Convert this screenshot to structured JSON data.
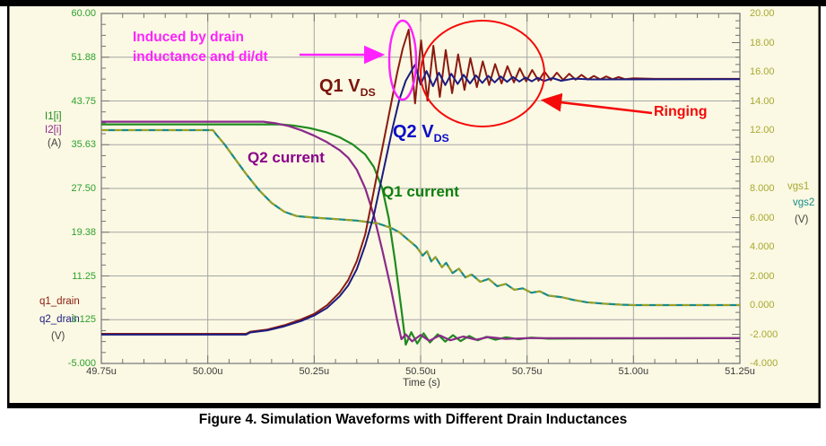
{
  "figure": {
    "caption": "Figure 4. Simulation Waveforms with Different Drain Inductances"
  },
  "colors": {
    "background": "#FBF9E3",
    "grid": "#A6A6A6",
    "frame": "#7F7F7F",
    "tick": "#737373",
    "left_axis_text": "#2EA02E",
    "right_axis_text": "#A8A832",
    "unit_text": "#3F3F3F",
    "i1_green": "#1F8A1F",
    "i2_purple": "#8B2A8B",
    "vgs1_olive": "#A0A020",
    "vgs2_teal": "#168A8A",
    "q1_dark_red": "#8B1A10",
    "q2_navy": "#1C1C80",
    "note_magenta": "#FF22FF",
    "ringing_red": "#F50A0A",
    "q1_vds_label": "#7A150C",
    "q2_vds_label": "#0A0AC8",
    "q1_current_label": "#0E7F0E",
    "q2_current_label": "#8B008B"
  },
  "axis_labels": {
    "i1": "I1[i]",
    "i2": "I2[i]",
    "amp_unit": "(A)",
    "q1_drain": "q1_drain",
    "q2_drain": "q2_drain",
    "volt_unit_left": "(V)",
    "vgs1": "vgs1",
    "vgs2": "vgs2",
    "volt_unit_right": "(V)"
  },
  "annotations": {
    "induced_note": "Induced by drain inductance and di/dt",
    "q1_vds": {
      "text": "Q1 V",
      "sub": "DS"
    },
    "q2_vds": {
      "text": "Q2 V",
      "sub": "DS"
    },
    "q2_current": "Q2 current",
    "q1_current": "Q1 current",
    "ringing": "Ringing"
  },
  "chart_data": {
    "type": "line",
    "title": "",
    "xlabel": "Time (s)",
    "x_range": [
      49.75,
      51.25
    ],
    "x_ticks": [
      [
        "49.75u",
        49.75
      ],
      [
        "50.00u",
        50.0
      ],
      [
        "50.25u",
        50.25
      ],
      [
        "50.50u",
        50.5
      ],
      [
        "50.75u",
        50.75
      ],
      [
        "51.00u",
        51.0
      ],
      [
        "51.25u",
        51.25
      ]
    ],
    "grid": true,
    "left_axis": {
      "range": [
        -5,
        60
      ],
      "ticks": [
        [
          "60.00",
          60
        ],
        [
          "51.88",
          51.88
        ],
        [
          "43.75",
          43.75
        ],
        [
          "35.63",
          35.63
        ],
        [
          "27.50",
          27.5
        ],
        [
          "19.38",
          19.38
        ],
        [
          "11.25",
          11.25
        ],
        [
          "3.125",
          3.125
        ],
        [
          "-5.000",
          -5
        ]
      ]
    },
    "right_axis": {
      "range": [
        -4,
        20
      ],
      "ticks": [
        [
          "20.00",
          20
        ],
        [
          "18.00",
          18
        ],
        [
          "16.00",
          16
        ],
        [
          "14.00",
          14
        ],
        [
          "12.00",
          12
        ],
        [
          "10.00",
          10
        ],
        [
          "8.000",
          8
        ],
        [
          "6.000",
          6
        ],
        [
          "4.000",
          4
        ],
        [
          "2.000",
          2
        ],
        [
          "0.000",
          0
        ],
        [
          "-2.000",
          -2
        ],
        [
          "-4.000",
          -4
        ]
      ]
    },
    "series": [
      {
        "id": "i1",
        "name": "I1[i] Q1 current (A)",
        "axis": "left",
        "color": "#1F8A1F",
        "width": 2.2,
        "points": [
          [
            49.75,
            39.4
          ],
          [
            50.17,
            39.4
          ],
          [
            50.2,
            39.2
          ],
          [
            50.24,
            38.7
          ],
          [
            50.28,
            37.9
          ],
          [
            50.31,
            37.0
          ],
          [
            50.34,
            35.7
          ],
          [
            50.37,
            33.8
          ],
          [
            50.39,
            31.5
          ],
          [
            50.41,
            27.5
          ],
          [
            50.425,
            22.0
          ],
          [
            50.44,
            14.0
          ],
          [
            50.455,
            5.0
          ],
          [
            50.465,
            -1.5
          ],
          [
            50.478,
            0.8
          ],
          [
            50.492,
            -1.3
          ],
          [
            50.507,
            0.6
          ],
          [
            50.522,
            -1.1
          ],
          [
            50.54,
            0.4
          ],
          [
            50.558,
            -0.95
          ],
          [
            50.576,
            0.25
          ],
          [
            50.594,
            -0.85
          ],
          [
            50.614,
            0.1
          ],
          [
            50.634,
            -0.7
          ],
          [
            50.655,
            -0.05
          ],
          [
            50.676,
            -0.6
          ],
          [
            50.7,
            -0.15
          ],
          [
            50.73,
            -0.5
          ],
          [
            50.76,
            -0.2
          ],
          [
            50.8,
            -0.4
          ],
          [
            51.25,
            -0.3
          ]
        ]
      },
      {
        "id": "i2",
        "name": "I2[i] Q2 current (A)",
        "axis": "left",
        "color": "#8B2A8B",
        "width": 2.2,
        "points": [
          [
            49.75,
            39.9
          ],
          [
            50.13,
            39.9
          ],
          [
            50.16,
            39.6
          ],
          [
            50.19,
            39.1
          ],
          [
            50.22,
            38.3
          ],
          [
            50.25,
            37.3
          ],
          [
            50.28,
            36.1
          ],
          [
            50.31,
            34.6
          ],
          [
            50.33,
            33.2
          ],
          [
            50.35,
            31.0
          ],
          [
            50.37,
            27.5
          ],
          [
            50.39,
            22.5
          ],
          [
            50.41,
            16.0
          ],
          [
            50.43,
            9.0
          ],
          [
            50.445,
            3.0
          ],
          [
            50.455,
            -0.5
          ],
          [
            50.465,
            0.4
          ],
          [
            50.48,
            -0.9
          ],
          [
            50.5,
            0.3
          ],
          [
            50.52,
            -0.8
          ],
          [
            50.545,
            0.2
          ],
          [
            50.57,
            -0.7
          ],
          [
            50.6,
            0.0
          ],
          [
            50.63,
            -0.6
          ],
          [
            50.66,
            -0.1
          ],
          [
            50.7,
            -0.45
          ],
          [
            50.75,
            -0.3
          ],
          [
            51.25,
            -0.3
          ]
        ]
      },
      {
        "id": "vgs2",
        "name": "vgs2 (V)",
        "axis": "right",
        "color": "#168A8A",
        "width": 2.2,
        "points": [
          [
            49.75,
            12
          ],
          [
            50.012,
            12
          ],
          [
            50.02,
            11.7
          ],
          [
            50.04,
            11.0
          ],
          [
            50.06,
            10.2
          ],
          [
            50.09,
            9.0
          ],
          [
            50.12,
            7.9
          ],
          [
            50.15,
            7.0
          ],
          [
            50.18,
            6.4
          ],
          [
            50.21,
            6.1
          ],
          [
            50.25,
            6.0
          ],
          [
            50.3,
            5.9
          ],
          [
            50.35,
            5.8
          ],
          [
            50.4,
            5.6
          ],
          [
            50.43,
            5.3
          ],
          [
            50.45,
            5.0
          ],
          [
            50.47,
            4.5
          ],
          [
            50.49,
            4.0
          ],
          [
            50.505,
            3.4
          ],
          [
            50.515,
            3.7
          ],
          [
            50.525,
            3.0
          ],
          [
            50.535,
            3.3
          ],
          [
            50.55,
            2.6
          ],
          [
            50.56,
            2.9
          ],
          [
            50.575,
            2.2
          ],
          [
            50.59,
            2.5
          ],
          [
            50.605,
            1.9
          ],
          [
            50.62,
            2.1
          ],
          [
            50.64,
            1.6
          ],
          [
            50.66,
            1.8
          ],
          [
            50.68,
            1.3
          ],
          [
            50.7,
            1.45
          ],
          [
            50.72,
            1.05
          ],
          [
            50.74,
            1.15
          ],
          [
            50.76,
            0.85
          ],
          [
            50.78,
            0.95
          ],
          [
            50.8,
            0.65
          ],
          [
            50.83,
            0.55
          ],
          [
            50.86,
            0.35
          ],
          [
            50.89,
            0.2
          ],
          [
            50.93,
            0.1
          ],
          [
            50.97,
            0.03
          ],
          [
            51.0,
            0.0
          ],
          [
            51.25,
            0.0
          ]
        ]
      },
      {
        "id": "vgs1",
        "name": "vgs1 (V)",
        "axis": "right",
        "color": "#A0A020",
        "width": 2,
        "dash": "8 7",
        "points": [
          [
            49.75,
            12
          ],
          [
            50.012,
            12
          ],
          [
            50.02,
            11.7
          ],
          [
            50.04,
            11.0
          ],
          [
            50.06,
            10.2
          ],
          [
            50.09,
            9.0
          ],
          [
            50.12,
            7.9
          ],
          [
            50.15,
            7.0
          ],
          [
            50.18,
            6.4
          ],
          [
            50.21,
            6.1
          ],
          [
            50.25,
            6.0
          ],
          [
            50.3,
            5.9
          ],
          [
            50.35,
            5.8
          ],
          [
            50.4,
            5.6
          ],
          [
            50.43,
            5.3
          ],
          [
            50.45,
            5.0
          ],
          [
            50.47,
            4.5
          ],
          [
            50.49,
            4.0
          ],
          [
            50.505,
            3.4
          ],
          [
            50.515,
            3.7
          ],
          [
            50.525,
            3.0
          ],
          [
            50.535,
            3.3
          ],
          [
            50.55,
            2.6
          ],
          [
            50.56,
            2.9
          ],
          [
            50.575,
            2.2
          ],
          [
            50.59,
            2.5
          ],
          [
            50.605,
            1.9
          ],
          [
            50.62,
            2.1
          ],
          [
            50.64,
            1.6
          ],
          [
            50.66,
            1.8
          ],
          [
            50.68,
            1.3
          ],
          [
            50.7,
            1.45
          ],
          [
            50.72,
            1.05
          ],
          [
            50.74,
            1.15
          ],
          [
            50.76,
            0.85
          ],
          [
            50.78,
            0.95
          ],
          [
            50.8,
            0.65
          ],
          [
            50.83,
            0.55
          ],
          [
            50.86,
            0.35
          ],
          [
            50.89,
            0.2
          ],
          [
            50.93,
            0.1
          ],
          [
            50.97,
            0.03
          ],
          [
            51.0,
            0.0
          ],
          [
            51.25,
            0.0
          ]
        ]
      },
      {
        "id": "q1_drain",
        "name": "q1_drain Q1 VDS (V)",
        "axis": "left",
        "color": "#8B1A10",
        "width": 2,
        "points": [
          [
            49.75,
            0.5
          ],
          [
            50.09,
            0.5
          ],
          [
            50.1,
            0.9
          ],
          [
            50.14,
            1.3
          ],
          [
            50.18,
            2.1
          ],
          [
            50.22,
            3.2
          ],
          [
            50.25,
            4.2
          ],
          [
            50.28,
            5.8
          ],
          [
            50.31,
            8.2
          ],
          [
            50.33,
            10.5
          ],
          [
            50.35,
            14
          ],
          [
            50.37,
            19
          ],
          [
            50.385,
            25
          ],
          [
            50.4,
            31
          ],
          [
            50.415,
            37
          ],
          [
            50.43,
            43
          ],
          [
            50.445,
            49
          ],
          [
            50.458,
            53.5
          ],
          [
            50.472,
            57
          ],
          [
            50.487,
            43.3
          ],
          [
            50.501,
            55
          ],
          [
            50.516,
            43.8
          ],
          [
            50.53,
            54
          ],
          [
            50.545,
            44.5
          ],
          [
            50.559,
            53.2
          ],
          [
            50.574,
            45.2
          ],
          [
            50.588,
            52.4
          ],
          [
            50.603,
            45.8
          ],
          [
            50.617,
            51.7
          ],
          [
            50.632,
            46.3
          ],
          [
            50.646,
            51.1
          ],
          [
            50.661,
            46.7
          ],
          [
            50.675,
            50.6
          ],
          [
            50.69,
            47.0
          ],
          [
            50.704,
            50.2
          ],
          [
            50.719,
            47.2
          ],
          [
            50.733,
            49.8
          ],
          [
            50.748,
            47.4
          ],
          [
            50.762,
            49.5
          ],
          [
            50.777,
            47.5
          ],
          [
            50.791,
            49.2
          ],
          [
            50.806,
            47.6
          ],
          [
            50.82,
            49.0
          ],
          [
            50.835,
            47.65
          ],
          [
            50.849,
            48.8
          ],
          [
            50.864,
            47.7
          ],
          [
            50.878,
            48.6
          ],
          [
            50.893,
            47.72
          ],
          [
            50.907,
            48.4
          ],
          [
            50.922,
            47.75
          ],
          [
            50.936,
            48.3
          ],
          [
            50.951,
            47.78
          ],
          [
            50.965,
            48.2
          ],
          [
            50.98,
            47.8
          ],
          [
            51.0,
            47.95
          ],
          [
            51.05,
            47.85
          ],
          [
            51.25,
            47.85
          ]
        ]
      },
      {
        "id": "q2_drain",
        "name": "q2_drain Q2 VDS (V)",
        "axis": "left",
        "color": "#1C1C80",
        "width": 2,
        "points": [
          [
            49.75,
            0.35
          ],
          [
            50.09,
            0.35
          ],
          [
            50.1,
            0.75
          ],
          [
            50.14,
            1.15
          ],
          [
            50.18,
            1.9
          ],
          [
            50.22,
            2.9
          ],
          [
            50.25,
            3.9
          ],
          [
            50.28,
            5.3
          ],
          [
            50.31,
            7.5
          ],
          [
            50.33,
            9.5
          ],
          [
            50.35,
            12.5
          ],
          [
            50.37,
            17
          ],
          [
            50.39,
            22.5
          ],
          [
            50.405,
            28
          ],
          [
            50.42,
            33.5
          ],
          [
            50.435,
            39
          ],
          [
            50.45,
            44
          ],
          [
            50.465,
            47.5
          ],
          [
            50.478,
            49.3
          ],
          [
            50.487,
            50.5
          ],
          [
            50.5,
            46.8
          ],
          [
            50.514,
            49.3
          ],
          [
            50.529,
            46.5
          ],
          [
            50.543,
            49.0
          ],
          [
            50.558,
            46.7
          ],
          [
            50.572,
            48.8
          ],
          [
            50.587,
            46.9
          ],
          [
            50.601,
            48.6
          ],
          [
            50.616,
            47.0
          ],
          [
            50.63,
            48.5
          ],
          [
            50.645,
            47.1
          ],
          [
            50.659,
            48.4
          ],
          [
            50.674,
            47.2
          ],
          [
            50.688,
            48.3
          ],
          [
            50.703,
            47.3
          ],
          [
            50.717,
            48.2
          ],
          [
            50.732,
            47.35
          ],
          [
            50.746,
            48.1
          ],
          [
            50.761,
            47.4
          ],
          [
            50.775,
            48.05
          ],
          [
            50.79,
            47.45
          ],
          [
            50.81,
            48.0
          ],
          [
            50.83,
            47.5
          ],
          [
            50.86,
            47.9
          ],
          [
            50.9,
            47.75
          ],
          [
            51.25,
            47.78
          ]
        ]
      }
    ]
  }
}
